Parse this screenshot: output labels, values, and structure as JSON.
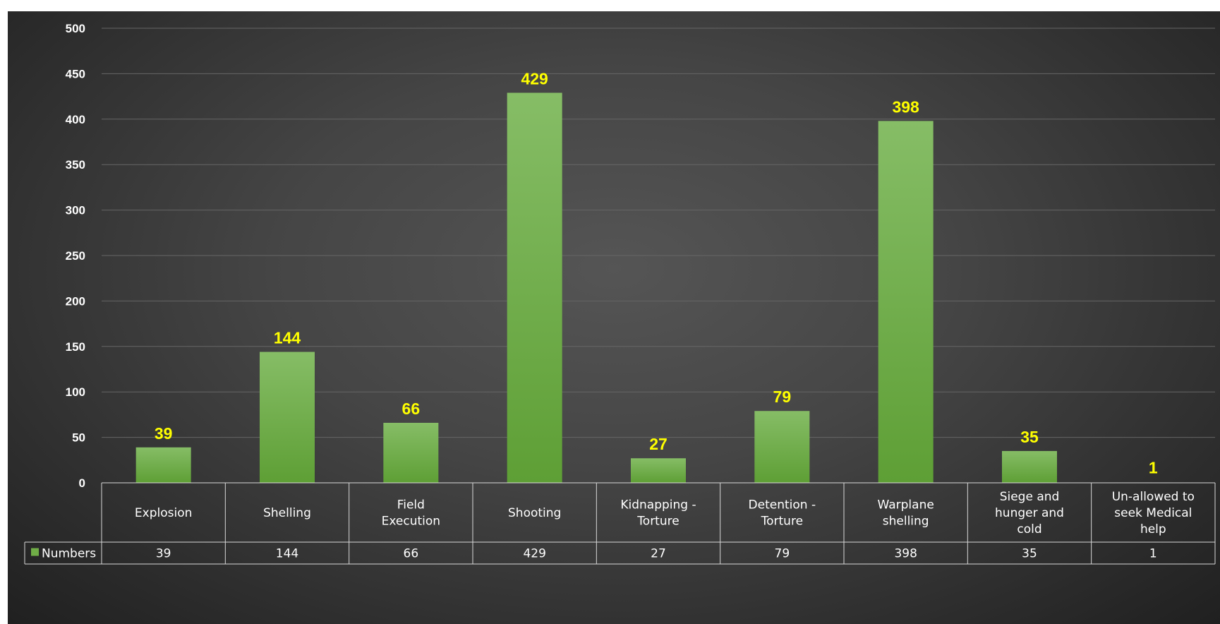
{
  "colors": {
    "bar_top": "#86bd66",
    "bar_bottom": "#5e9f35",
    "data_label": "#ffff00",
    "gridline": "#666666",
    "table_border": "#d9d9d9",
    "text": "#ffffff",
    "legend_key": "#70ad47"
  },
  "chart_data": {
    "type": "bar",
    "title": "",
    "xlabel": "",
    "ylabel": "",
    "ylim": [
      0,
      500
    ],
    "yticks": [
      0,
      50,
      100,
      150,
      200,
      250,
      300,
      350,
      400,
      450,
      500
    ],
    "grid": true,
    "legend": "data-table",
    "categories": [
      "Explosion",
      "Shelling",
      "Field Execution",
      "Shooting",
      "Kidnapping - Torture",
      "Detention - Torture",
      "Warplane shelling",
      "Siege and hunger and cold",
      "Un-allowed to seek Medical help"
    ],
    "series": [
      {
        "name": "Numbers",
        "values": [
          39,
          144,
          66,
          429,
          27,
          79,
          398,
          35,
          1
        ]
      }
    ]
  }
}
